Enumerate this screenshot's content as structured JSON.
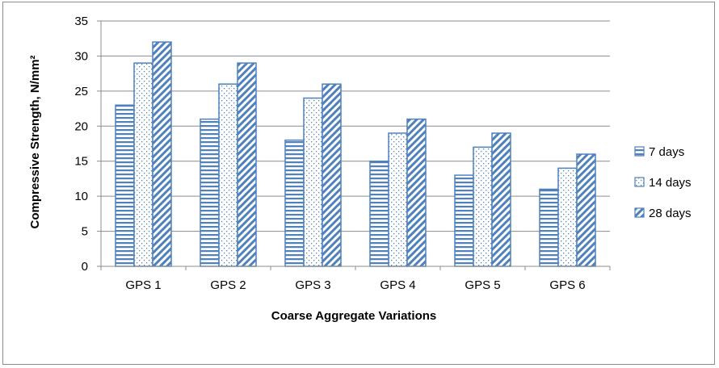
{
  "chart_data": {
    "type": "bar",
    "categories": [
      "GPS 1",
      "GPS 2",
      "GPS 3",
      "GPS 4",
      "GPS 5",
      "GPS 6"
    ],
    "series": [
      {
        "name": "7 days",
        "values": [
          23,
          21,
          18,
          15,
          13,
          11
        ],
        "pattern": "horizontal-stripes"
      },
      {
        "name": "14 days",
        "values": [
          29,
          26,
          24,
          19,
          17,
          14
        ],
        "pattern": "dots"
      },
      {
        "name": "28 days",
        "values": [
          32,
          29,
          26,
          21,
          19,
          16
        ],
        "pattern": "diagonal-stripes"
      }
    ],
    "xlabel": "Coarse Aggregate Variations",
    "ylabel": "Compressive Strength, N/mm²",
    "ylim": [
      0,
      35
    ],
    "yticks": [
      0,
      5,
      10,
      15,
      20,
      25,
      30,
      35
    ],
    "grid": true,
    "legend": "right",
    "colors": {
      "bar_stroke": "#4f81bd",
      "grid": "#8c8c8c",
      "frame": "#8c8c8c"
    }
  }
}
